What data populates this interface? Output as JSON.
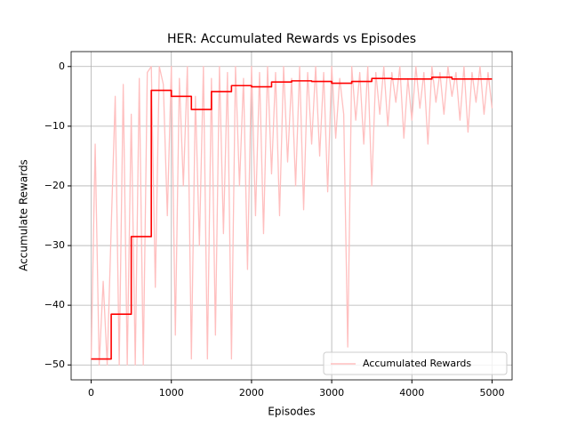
{
  "chart_data": {
    "type": "line",
    "title": "HER: Accumulated Rewards vs Episodes",
    "x_label": "Episodes",
    "y_label": "Accumulate Rewards",
    "xlim": [
      -250,
      5250
    ],
    "ylim": [
      -52.5,
      2.5
    ],
    "xticks": [
      0,
      1000,
      2000,
      3000,
      4000,
      5000
    ],
    "yticks": [
      {
        "value": -50,
        "label": "−50"
      },
      {
        "value": -40,
        "label": "−40"
      },
      {
        "value": -30,
        "label": "−30"
      },
      {
        "value": -20,
        "label": "−20"
      },
      {
        "value": -10,
        "label": "−10"
      },
      0
    ],
    "grid": true,
    "legend": "lower right",
    "series": [
      {
        "name": "Accumulated Rewards",
        "color": "#ffbfbf",
        "x": [
          0,
          50,
          100,
          150,
          200,
          250,
          300,
          350,
          400,
          450,
          500,
          550,
          600,
          650,
          700,
          750,
          800,
          850,
          900,
          950,
          1000,
          1050,
          1100,
          1150,
          1200,
          1250,
          1300,
          1350,
          1400,
          1450,
          1500,
          1550,
          1600,
          1650,
          1700,
          1750,
          1800,
          1850,
          1900,
          1950,
          2000,
          2050,
          2100,
          2150,
          2200,
          2250,
          2300,
          2350,
          2400,
          2450,
          2500,
          2550,
          2600,
          2650,
          2700,
          2750,
          2800,
          2850,
          2900,
          2950,
          3000,
          3050,
          3100,
          3150,
          3200,
          3250,
          3300,
          3350,
          3400,
          3450,
          3500,
          3550,
          3600,
          3650,
          3700,
          3750,
          3800,
          3850,
          3900,
          3950,
          4000,
          4050,
          4100,
          4150,
          4200,
          4250,
          4300,
          4350,
          4400,
          4450,
          4500,
          4550,
          4600,
          4650,
          4700,
          4750,
          4800,
          4850,
          4900,
          4950,
          5000
        ],
        "values": [
          -49,
          -13,
          -50,
          -36,
          -50,
          -27,
          -5,
          -50,
          -3,
          -50,
          -8,
          -50,
          -2,
          -50,
          -1,
          0,
          -37,
          0,
          -3,
          -25,
          0,
          -45,
          -2,
          -20,
          0,
          -49,
          -5,
          -30,
          0,
          -49,
          -2,
          -45,
          0,
          -28,
          -1,
          -49,
          0,
          -20,
          -2,
          -34,
          0,
          -25,
          -1,
          -28,
          0,
          -18,
          -1,
          -25,
          0,
          -16,
          -2,
          -20,
          0,
          -24,
          -1,
          -13,
          0,
          -15,
          -1,
          -21,
          0,
          -12,
          -2,
          -8,
          -47,
          0,
          -9,
          -1,
          -13,
          0,
          -20,
          -1,
          -8,
          0,
          -10,
          -1,
          -6,
          0,
          -12,
          -2,
          -9,
          0,
          -7,
          -1,
          -13,
          0,
          -6,
          -1,
          -8,
          0,
          -5,
          -1,
          -9,
          0,
          -11,
          -1,
          -6,
          0,
          -8,
          -1,
          -7
        ]
      },
      {
        "color": "#ff0000",
        "drawstyle": "steps-post",
        "x": [
          0,
          250,
          500,
          750,
          1000,
          1250,
          1500,
          1750,
          2000,
          2250,
          2500,
          2750,
          3000,
          3250,
          3500,
          3750,
          4000,
          4250,
          4500,
          4750,
          5000
        ],
        "values": [
          -49,
          -41.5,
          -28.5,
          -4,
          -5,
          -7.2,
          -4.2,
          -3.2,
          -3.4,
          -2.6,
          -2.4,
          -2.5,
          -2.8,
          -2.5,
          -2.0,
          -2.1,
          -2.1,
          -1.8,
          -2.1,
          -2.1,
          -2.1
        ]
      }
    ]
  }
}
